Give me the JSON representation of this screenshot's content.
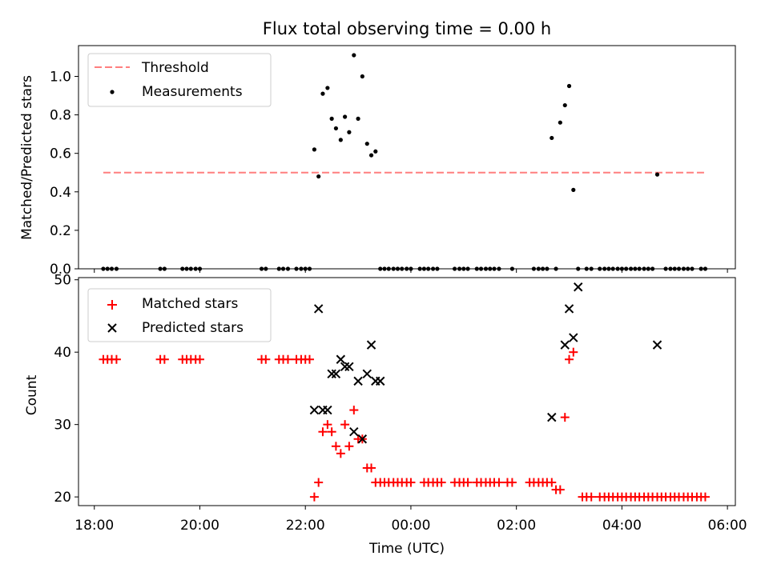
{
  "chart_data": [
    {
      "type": "scatter",
      "title": "Flux total observing time = 0.00 h",
      "ylabel": "Matched/Predicted stars",
      "xlabel": "",
      "xlim": [
        17.7,
        30.15
      ],
      "ylim": [
        0,
        1.16
      ],
      "xticks": [
        18,
        20,
        22,
        24,
        26,
        28,
        30
      ],
      "yticks": [
        0.0,
        0.2,
        0.4,
        0.6,
        0.8,
        1.0
      ],
      "ytick_labels": [
        "0.0",
        "0.2",
        "0.4",
        "0.6",
        "0.8",
        "1.0"
      ],
      "legend": {
        "location": "top-left",
        "entries": [
          "Threshold",
          "Measurements"
        ]
      },
      "threshold": {
        "name": "Threshold",
        "value": 0.5,
        "x_range": [
          18.17,
          29.58
        ],
        "color": "#ff7f7f",
        "style": "dashed"
      },
      "series": [
        {
          "name": "Measurements",
          "color": "#000000",
          "x": [
            18.17,
            18.25,
            18.33,
            18.42,
            19.25,
            19.33,
            19.67,
            19.75,
            19.83,
            19.92,
            20.0,
            21.17,
            21.25,
            21.5,
            21.58,
            21.67,
            21.83,
            21.92,
            22.0,
            22.08,
            22.17,
            22.25,
            22.33,
            22.42,
            22.5,
            22.58,
            22.67,
            22.75,
            22.83,
            22.92,
            23.0,
            23.08,
            23.17,
            23.25,
            23.33,
            23.42,
            23.5,
            23.58,
            23.67,
            23.75,
            23.83,
            23.92,
            24.0,
            24.17,
            24.25,
            24.33,
            24.42,
            24.5,
            24.83,
            24.92,
            25.0,
            25.08,
            25.25,
            25.33,
            25.42,
            25.5,
            25.58,
            25.67,
            25.92,
            26.33,
            26.42,
            26.5,
            26.58,
            26.67,
            26.75,
            26.83,
            26.92,
            27.0,
            27.08,
            27.17,
            27.33,
            27.42,
            27.58,
            27.67,
            27.75,
            27.83,
            27.92,
            28.0,
            28.08,
            28.17,
            28.25,
            28.33,
            28.42,
            28.5,
            28.58,
            28.67,
            28.83,
            28.92,
            29.0,
            29.08,
            29.17,
            29.25,
            29.33,
            29.5,
            29.58
          ],
          "y": [
            0,
            0,
            0,
            0,
            0,
            0,
            0,
            0,
            0,
            0,
            0,
            0,
            0,
            0,
            0,
            0,
            0,
            0,
            0,
            0,
            0.62,
            0.48,
            0.91,
            0.94,
            0.78,
            0.73,
            0.67,
            0.79,
            0.71,
            1.11,
            0.78,
            1.0,
            0.65,
            0.59,
            0.61,
            0,
            0,
            0,
            0,
            0,
            0,
            0,
            0,
            0,
            0,
            0,
            0,
            0,
            0,
            0,
            0,
            0,
            0,
            0,
            0,
            0,
            0,
            0,
            0,
            0,
            0,
            0,
            0,
            0.68,
            0,
            0.76,
            0.85,
            0.95,
            0.41,
            0,
            0,
            0,
            0,
            0,
            0,
            0,
            0,
            0,
            0,
            0,
            0,
            0,
            0,
            0,
            0,
            0.49,
            0,
            0,
            0,
            0,
            0,
            0,
            0,
            0,
            0
          ]
        }
      ]
    },
    {
      "type": "scatter",
      "title": "",
      "ylabel": "Count",
      "xlabel": "Time (UTC)",
      "xlim": [
        17.7,
        30.15
      ],
      "ylim": [
        18.8,
        50.3
      ],
      "xticks": [
        18,
        20,
        22,
        24,
        26,
        28,
        30
      ],
      "xtick_labels": [
        "18:00",
        "20:00",
        "22:00",
        "00:00",
        "02:00",
        "04:00",
        "06:00"
      ],
      "yticks": [
        20,
        30,
        40,
        50
      ],
      "ytick_labels": [
        "20",
        "30",
        "40",
        "50"
      ],
      "legend": {
        "location": "top-left",
        "entries": [
          "Matched stars",
          "Predicted stars"
        ]
      },
      "series": [
        {
          "name": "Matched stars",
          "marker": "plus",
          "color": "#ff0000",
          "x": [
            18.17,
            18.25,
            18.33,
            18.42,
            19.25,
            19.33,
            19.67,
            19.75,
            19.83,
            19.92,
            20.0,
            21.17,
            21.25,
            21.5,
            21.58,
            21.67,
            21.83,
            21.92,
            22.0,
            22.08,
            22.17,
            22.25,
            22.33,
            22.42,
            22.5,
            22.58,
            22.67,
            22.75,
            22.83,
            22.92,
            23.0,
            23.08,
            23.17,
            23.25,
            23.33,
            23.42,
            23.5,
            23.58,
            23.67,
            23.75,
            23.83,
            23.92,
            24.0,
            24.25,
            24.33,
            24.42,
            24.5,
            24.58,
            24.83,
            24.92,
            25.0,
            25.08,
            25.25,
            25.33,
            25.42,
            25.5,
            25.58,
            25.67,
            25.83,
            25.92,
            26.25,
            26.33,
            26.42,
            26.5,
            26.58,
            26.67,
            26.75,
            26.83,
            26.92,
            27.0,
            27.08,
            27.25,
            27.33,
            27.42,
            27.58,
            27.67,
            27.75,
            27.83,
            27.92,
            28.0,
            28.08,
            28.17,
            28.25,
            28.33,
            28.42,
            28.5,
            28.58,
            28.67,
            28.75,
            28.83,
            28.92,
            29.0,
            29.08,
            29.17,
            29.25,
            29.33,
            29.42,
            29.5,
            29.58
          ],
          "y": [
            39,
            39,
            39,
            39,
            39,
            39,
            39,
            39,
            39,
            39,
            39,
            39,
            39,
            39,
            39,
            39,
            39,
            39,
            39,
            39,
            20,
            22,
            29,
            30,
            29,
            27,
            26,
            30,
            27,
            32,
            28,
            28,
            24,
            24,
            22,
            22,
            22,
            22,
            22,
            22,
            22,
            22,
            22,
            22,
            22,
            22,
            22,
            22,
            22,
            22,
            22,
            22,
            22,
            22,
            22,
            22,
            22,
            22,
            22,
            22,
            22,
            22,
            22,
            22,
            22,
            22,
            21,
            21,
            31,
            39,
            40,
            20,
            20,
            20,
            20,
            20,
            20,
            20,
            20,
            20,
            20,
            20,
            20,
            20,
            20,
            20,
            20,
            20,
            20,
            20,
            20,
            20,
            20,
            20,
            20,
            20,
            20,
            20,
            20
          ]
        },
        {
          "name": "Predicted stars",
          "marker": "x",
          "color": "#000000",
          "x": [
            22.17,
            22.25,
            22.33,
            22.42,
            22.5,
            22.58,
            22.67,
            22.75,
            22.83,
            22.92,
            23.0,
            23.08,
            23.17,
            23.25,
            23.33,
            23.42,
            26.67,
            26.92,
            27.0,
            27.08,
            27.17,
            28.67
          ],
          "y": [
            32,
            46,
            32,
            32,
            37,
            37,
            39,
            38,
            38,
            29,
            36,
            28,
            37,
            41,
            36,
            36,
            31,
            41,
            46,
            42,
            49,
            41
          ]
        }
      ]
    }
  ]
}
